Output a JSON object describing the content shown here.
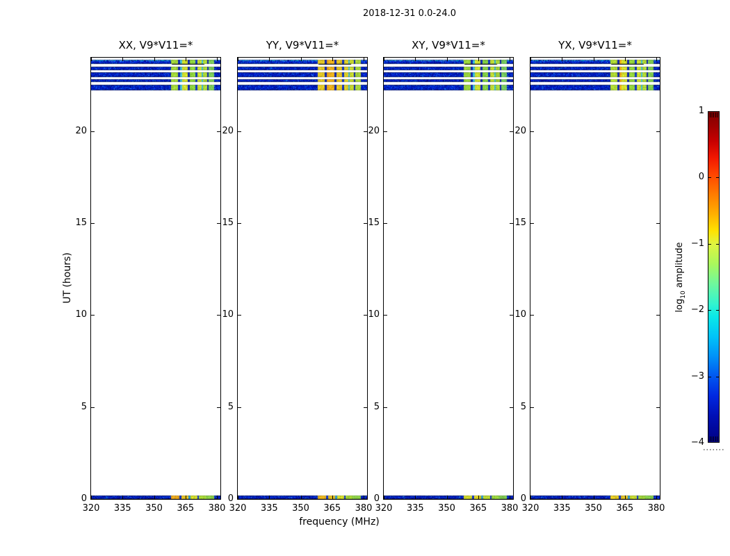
{
  "figure": {
    "title": "2018-12-31 0.0-24.0",
    "background": "#ffffff"
  },
  "chart_data": {
    "type": "heatmap",
    "title": "2018-12-31 0.0-24.0",
    "xlabel": "frequency (MHz)",
    "ylabel": "UT (hours)",
    "xlim": [
      320,
      381.5
    ],
    "ylim": [
      0,
      24
    ],
    "grid": false,
    "xticks": [
      {
        "v": 320,
        "label": "320"
      },
      {
        "v": 335,
        "label": "335"
      },
      {
        "v": 350,
        "label": "350"
      },
      {
        "v": 365,
        "label": "365"
      },
      {
        "v": 380,
        "label": "380"
      }
    ],
    "yticks": [
      {
        "v": 20,
        "label": "20"
      },
      {
        "v": 15,
        "label": "15"
      },
      {
        "v": 10,
        "label": "10"
      },
      {
        "v": 5,
        "label": "5"
      },
      {
        "v": 0,
        "label": "0"
      }
    ],
    "time_stripes_hours": [
      [
        0.0,
        0.2
      ],
      [
        22.24,
        22.52
      ],
      [
        22.67,
        22.84
      ],
      [
        22.95,
        23.21
      ],
      [
        23.33,
        23.5
      ],
      [
        23.65,
        23.9
      ]
    ],
    "noise_band_mhz": [
      320,
      358
    ],
    "rfi_band_mhz": [
      358,
      378.4
    ],
    "noise_palette": [
      "#000d96",
      "#0013ae",
      "#001cc4",
      "#0028d2",
      "#0136de",
      "#0448e8",
      "#1a66ee",
      "#2f87f0",
      "#00a6e8"
    ],
    "noise_light_palette": [
      "#2f87f0",
      "#4fa6ee",
      "#1a66ee",
      "#00b4e8"
    ],
    "panels": [
      {
        "id": "XX",
        "title": "XX, V9*V11=*",
        "rfi_segments_mhz": [
          [
            358.0,
            361.2,
            "#a6dc3a"
          ],
          [
            361.2,
            362.2,
            "#0e24b4"
          ],
          [
            362.2,
            363.1,
            "#46c4dc"
          ],
          [
            363.1,
            366.0,
            "#d4e42e"
          ],
          [
            366.0,
            366.9,
            "#0e24b4"
          ],
          [
            366.9,
            369.7,
            "#90d83e"
          ],
          [
            369.7,
            370.7,
            "#1034c8"
          ],
          [
            370.7,
            372.4,
            "#cce232"
          ],
          [
            372.4,
            373.2,
            "#38b8d8"
          ],
          [
            373.2,
            375.1,
            "#b0dc36"
          ],
          [
            375.1,
            375.9,
            "#0e24b4"
          ],
          [
            375.9,
            378.4,
            "#7ed05a"
          ]
        ],
        "bottom_segments_mhz": [
          [
            358.0,
            362.0,
            "#f0ac1e"
          ],
          [
            362.0,
            362.9,
            "#1034c8"
          ],
          [
            362.9,
            366.4,
            "#eec822"
          ],
          [
            366.4,
            367.2,
            "#2e9cd4"
          ],
          [
            367.2,
            370.4,
            "#d8e22c"
          ],
          [
            370.4,
            371.2,
            "#1034c8"
          ],
          [
            371.2,
            374.4,
            "#aadc38"
          ],
          [
            374.4,
            378.4,
            "#8ed44a"
          ]
        ]
      },
      {
        "id": "YY",
        "title": "YY, V9*V11=*",
        "rfi_segments_mhz": [
          [
            358.0,
            361.2,
            "#e6ca26"
          ],
          [
            361.2,
            362.2,
            "#0e24b4"
          ],
          [
            362.2,
            363.1,
            "#f0a81e"
          ],
          [
            363.1,
            366.0,
            "#f2b41c"
          ],
          [
            366.0,
            366.9,
            "#0e24b4"
          ],
          [
            366.9,
            369.7,
            "#eac822"
          ],
          [
            369.7,
            370.7,
            "#1034c8"
          ],
          [
            370.7,
            372.4,
            "#e6d426"
          ],
          [
            372.4,
            373.2,
            "#44bcd4"
          ],
          [
            373.2,
            375.1,
            "#c8da2e"
          ],
          [
            375.1,
            375.9,
            "#0e24b4"
          ],
          [
            375.9,
            378.4,
            "#aad83c"
          ]
        ],
        "bottom_segments_mhz": [
          [
            358.0,
            362.0,
            "#eeb81e"
          ],
          [
            362.0,
            362.9,
            "#1034c8"
          ],
          [
            362.9,
            366.4,
            "#eec822"
          ],
          [
            366.4,
            367.2,
            "#2e9cd4"
          ],
          [
            367.2,
            370.4,
            "#d8e22c"
          ],
          [
            370.4,
            371.2,
            "#1034c8"
          ],
          [
            371.2,
            374.4,
            "#aadc38"
          ],
          [
            374.4,
            378.4,
            "#8ed44a"
          ]
        ]
      },
      {
        "id": "XY",
        "title": "XY, V9*V11=*",
        "rfi_segments_mhz": [
          [
            358.0,
            361.2,
            "#9cd83e"
          ],
          [
            361.2,
            362.2,
            "#0e24b4"
          ],
          [
            362.2,
            363.1,
            "#3cc0dc"
          ],
          [
            363.1,
            366.0,
            "#cee232"
          ],
          [
            366.0,
            366.9,
            "#0e24b4"
          ],
          [
            366.9,
            369.7,
            "#86d446"
          ],
          [
            369.7,
            370.7,
            "#1034c8"
          ],
          [
            370.7,
            372.4,
            "#c4e034"
          ],
          [
            372.4,
            373.2,
            "#38b8d8"
          ],
          [
            373.2,
            375.1,
            "#a8da3a"
          ],
          [
            375.1,
            375.9,
            "#0e24b4"
          ],
          [
            375.9,
            378.4,
            "#78cc60"
          ]
        ],
        "bottom_segments_mhz": [
          [
            358.0,
            362.0,
            "#d8e02c"
          ],
          [
            362.0,
            362.9,
            "#1034c8"
          ],
          [
            362.9,
            366.4,
            "#e2d826"
          ],
          [
            366.4,
            367.2,
            "#2e9cd4"
          ],
          [
            367.2,
            370.4,
            "#c2e032"
          ],
          [
            370.4,
            371.2,
            "#1034c8"
          ],
          [
            371.2,
            374.4,
            "#9cd83e"
          ],
          [
            374.4,
            378.4,
            "#84d052"
          ]
        ]
      },
      {
        "id": "YX",
        "title": "YX, V9*V11=*",
        "rfi_segments_mhz": [
          [
            358.0,
            361.2,
            "#b2de34"
          ],
          [
            361.2,
            362.2,
            "#0e24b4"
          ],
          [
            362.2,
            363.1,
            "#ecae1c"
          ],
          [
            363.1,
            366.0,
            "#d8e42c"
          ],
          [
            366.0,
            366.9,
            "#0e24b4"
          ],
          [
            366.9,
            369.7,
            "#96d83c"
          ],
          [
            369.7,
            370.7,
            "#1034c8"
          ],
          [
            370.7,
            372.4,
            "#d0e230"
          ],
          [
            372.4,
            373.2,
            "#40bcd6"
          ],
          [
            373.2,
            375.1,
            "#b4dc34"
          ],
          [
            375.1,
            375.9,
            "#0e24b4"
          ],
          [
            375.9,
            378.4,
            "#84d252"
          ]
        ],
        "bottom_segments_mhz": [
          [
            358.0,
            362.0,
            "#e8ce24"
          ],
          [
            362.0,
            362.9,
            "#1034c8"
          ],
          [
            362.9,
            366.4,
            "#e8c824"
          ],
          [
            366.4,
            367.2,
            "#2e9cd4"
          ],
          [
            367.2,
            370.4,
            "#cce030"
          ],
          [
            370.4,
            371.2,
            "#1034c8"
          ],
          [
            371.2,
            374.4,
            "#a0d83c"
          ],
          [
            374.4,
            378.4,
            "#88d24e"
          ]
        ]
      }
    ],
    "colorbar": {
      "label": "log10 amplitude",
      "label_parts": {
        "prefix": "log",
        "sub": "10",
        "suffix": " amplitude"
      },
      "colormap": "jet",
      "vmin": -4,
      "vmax": 1,
      "ticks": [
        {
          "v": 1,
          "label": "1"
        },
        {
          "v": 0,
          "label": "0"
        },
        {
          "v": -1,
          "label": "−1"
        },
        {
          "v": -2,
          "label": "−2"
        },
        {
          "v": -3,
          "label": "−3"
        },
        {
          "v": -4,
          "label": "−4"
        }
      ],
      "gradient": [
        [
          0.0,
          "#7f0000"
        ],
        [
          0.044,
          "#9f0000"
        ],
        [
          0.09,
          "#c80000"
        ],
        [
          0.14,
          "#f21800"
        ],
        [
          0.19,
          "#ff4600"
        ],
        [
          0.25,
          "#ff7c00"
        ],
        [
          0.31,
          "#ffb000"
        ],
        [
          0.36,
          "#ffe200"
        ],
        [
          0.4,
          "#e0f440"
        ],
        [
          0.46,
          "#aaf85c"
        ],
        [
          0.52,
          "#70f89c"
        ],
        [
          0.58,
          "#34f4ce"
        ],
        [
          0.62,
          "#0ae8e8"
        ],
        [
          0.68,
          "#00c4f8"
        ],
        [
          0.74,
          "#0092f8"
        ],
        [
          0.8,
          "#0058f0"
        ],
        [
          0.86,
          "#0028e0"
        ],
        [
          0.92,
          "#0010b6"
        ],
        [
          1.0,
          "#000082"
        ]
      ]
    }
  }
}
